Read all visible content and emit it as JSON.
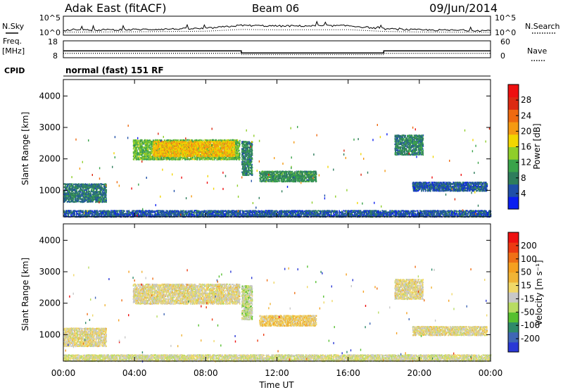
{
  "header": {
    "station": "Adak East (fitACF)",
    "beam": "Beam 06",
    "date": "09/Jun/2014"
  },
  "colors": {
    "power_scale": [
      "#0a1ef0",
      "#1f4fa8",
      "#2e7d5c",
      "#3aa34a",
      "#8fce2a",
      "#f2d600",
      "#f59a12",
      "#ee6a10",
      "#dc2a12",
      "#ee1010"
    ],
    "velocity_scale": [
      "#2a38d6",
      "#3f66b6",
      "#2f8a6a",
      "#56c030",
      "#b8dc62",
      "#c8c8c8",
      "#f0d868",
      "#f0b436",
      "#f5a020",
      "#ef7016",
      "#ec3a12",
      "#ee1010"
    ]
  },
  "chart_data": [
    {
      "type": "line",
      "panel": "noise",
      "left_label": "N.Sky",
      "right_label": "N.Search",
      "left_ticks": [
        "10^5",
        "10^0"
      ],
      "right_ticks": [
        "10^5",
        "10^0"
      ],
      "x": [
        "00:00",
        "04:00",
        "08:00",
        "10:00",
        "12:00",
        "16:00",
        "18:00",
        "20:00",
        "24:00"
      ],
      "series": [
        {
          "values": [
            1.2,
            1.4,
            1.7,
            2.6,
            2.4,
            2.5,
            1.6,
            1.3,
            1.1
          ]
        }
      ],
      "ylim": [
        0,
        5
      ]
    },
    {
      "type": "line",
      "panel": "frequency",
      "left_label": "Freq.",
      "left_unit": "[MHz]",
      "right_label": "Nave",
      "left_ticks": [
        "18",
        "8"
      ],
      "right_ticks": [
        "60",
        "0"
      ],
      "series": [
        {
          "x": [
            0,
            10,
            10,
            18,
            18,
            24
          ],
          "values": [
            12,
            12,
            10.6,
            10.6,
            12,
            12
          ]
        },
        {
          "x": [
            0,
            10,
            10,
            18,
            18,
            24
          ],
          "values": [
            10.4,
            10.4,
            9.6,
            9.6,
            10.4,
            10.4
          ]
        }
      ],
      "ylim": [
        8,
        18
      ]
    },
    {
      "type": "table",
      "panel": "cpid",
      "label": "CPID",
      "text": "normal (fast) 151 RF"
    },
    {
      "type": "heatmap",
      "panel": "power",
      "ylabel": "Slant Range [km]",
      "yticks": [
        "4000",
        "3000",
        "2000",
        "1000"
      ],
      "ylim": [
        180,
        4500
      ],
      "xlim": [
        0,
        24
      ],
      "colorbar": {
        "title": "Power [dB]",
        "ticks": [
          "28",
          "24",
          "20",
          "16",
          "12",
          "8",
          "4"
        ],
        "range": [
          0,
          30
        ]
      },
      "regions": [
        {
          "t": [
            3.9,
            9.9
          ],
          "r": [
            2000,
            2650
          ],
          "value": 12
        },
        {
          "t": [
            5.0,
            9.6
          ],
          "r": [
            2100,
            2600
          ],
          "value": 18
        },
        {
          "t": [
            10.0,
            10.6
          ],
          "r": [
            1500,
            2600
          ],
          "value": 8
        },
        {
          "t": [
            11.0,
            14.2
          ],
          "r": [
            1300,
            1650
          ],
          "value": 9
        },
        {
          "t": [
            0.0,
            2.4
          ],
          "r": [
            650,
            1250
          ],
          "value": 7
        },
        {
          "t": [
            18.6,
            20.2
          ],
          "r": [
            2150,
            2800
          ],
          "value": 8
        },
        {
          "t": [
            19.6,
            23.8
          ],
          "r": [
            1000,
            1300
          ],
          "value": 5
        },
        {
          "t": [
            0.0,
            24.0
          ],
          "r": [
            180,
            400
          ],
          "value": 5
        }
      ]
    },
    {
      "type": "heatmap",
      "panel": "velocity",
      "ylabel": "Slant Range [km]",
      "yticks": [
        "4000",
        "3000",
        "2000",
        "1000"
      ],
      "ylim": [
        180,
        4500
      ],
      "xlim": [
        0,
        24
      ],
      "xticks": [
        "00:00",
        "04:00",
        "08:00",
        "12:00",
        "16:00",
        "20:00",
        "00:00"
      ],
      "xlabel": "Time UT",
      "colorbar": {
        "title": "Velocity [m s⁻¹]",
        "ticks": [
          "200",
          "100",
          "50",
          "15",
          "-15",
          "-50",
          "-100",
          "-200"
        ],
        "range": [
          -250,
          250
        ]
      },
      "regions": [
        {
          "t": [
            3.9,
            9.9
          ],
          "r": [
            2000,
            2650
          ],
          "value": 0
        },
        {
          "t": [
            10.0,
            10.6
          ],
          "r": [
            1500,
            2600
          ],
          "value": -40
        },
        {
          "t": [
            11.0,
            14.2
          ],
          "r": [
            1300,
            1650
          ],
          "value": 35
        },
        {
          "t": [
            0.0,
            2.4
          ],
          "r": [
            650,
            1250
          ],
          "value": 0
        },
        {
          "t": [
            18.6,
            20.2
          ],
          "r": [
            2150,
            2800
          ],
          "value": 0
        },
        {
          "t": [
            19.6,
            23.8
          ],
          "r": [
            1000,
            1300
          ],
          "value": 0
        },
        {
          "t": [
            0.0,
            24.0
          ],
          "r": [
            180,
            400
          ],
          "value": -20
        }
      ]
    }
  ]
}
